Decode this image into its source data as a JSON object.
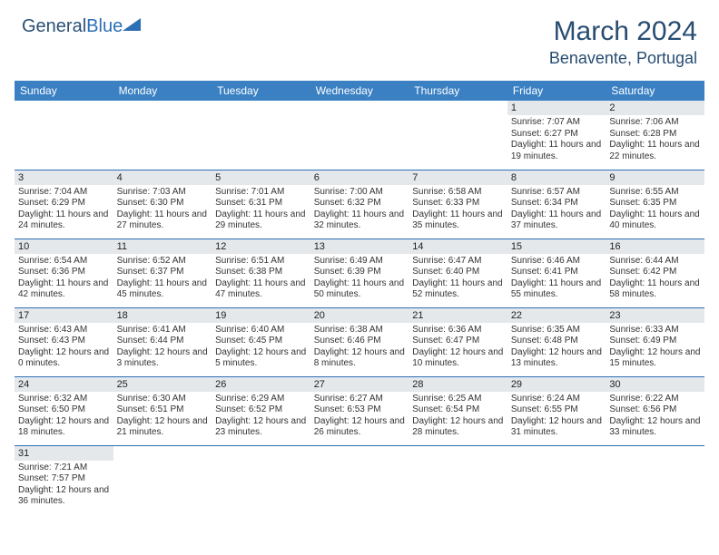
{
  "logo": {
    "text1": "General",
    "text2": "Blue"
  },
  "title": "March 2024",
  "location": "Benavente, Portugal",
  "weekdays": [
    "Sunday",
    "Monday",
    "Tuesday",
    "Wednesday",
    "Thursday",
    "Friday",
    "Saturday"
  ],
  "colors": {
    "header_bg": "#3a80c3",
    "header_text": "#ffffff",
    "title_text": "#284d72",
    "daynum_bg": "#e5e8eb",
    "border": "#2d6fb5"
  },
  "grid": [
    [
      null,
      null,
      null,
      null,
      null,
      {
        "n": "1",
        "sunrise": "Sunrise: 7:07 AM",
        "sunset": "Sunset: 6:27 PM",
        "daylight": "Daylight: 11 hours and 19 minutes."
      },
      {
        "n": "2",
        "sunrise": "Sunrise: 7:06 AM",
        "sunset": "Sunset: 6:28 PM",
        "daylight": "Daylight: 11 hours and 22 minutes."
      }
    ],
    [
      {
        "n": "3",
        "sunrise": "Sunrise: 7:04 AM",
        "sunset": "Sunset: 6:29 PM",
        "daylight": "Daylight: 11 hours and 24 minutes."
      },
      {
        "n": "4",
        "sunrise": "Sunrise: 7:03 AM",
        "sunset": "Sunset: 6:30 PM",
        "daylight": "Daylight: 11 hours and 27 minutes."
      },
      {
        "n": "5",
        "sunrise": "Sunrise: 7:01 AM",
        "sunset": "Sunset: 6:31 PM",
        "daylight": "Daylight: 11 hours and 29 minutes."
      },
      {
        "n": "6",
        "sunrise": "Sunrise: 7:00 AM",
        "sunset": "Sunset: 6:32 PM",
        "daylight": "Daylight: 11 hours and 32 minutes."
      },
      {
        "n": "7",
        "sunrise": "Sunrise: 6:58 AM",
        "sunset": "Sunset: 6:33 PM",
        "daylight": "Daylight: 11 hours and 35 minutes."
      },
      {
        "n": "8",
        "sunrise": "Sunrise: 6:57 AM",
        "sunset": "Sunset: 6:34 PM",
        "daylight": "Daylight: 11 hours and 37 minutes."
      },
      {
        "n": "9",
        "sunrise": "Sunrise: 6:55 AM",
        "sunset": "Sunset: 6:35 PM",
        "daylight": "Daylight: 11 hours and 40 minutes."
      }
    ],
    [
      {
        "n": "10",
        "sunrise": "Sunrise: 6:54 AM",
        "sunset": "Sunset: 6:36 PM",
        "daylight": "Daylight: 11 hours and 42 minutes."
      },
      {
        "n": "11",
        "sunrise": "Sunrise: 6:52 AM",
        "sunset": "Sunset: 6:37 PM",
        "daylight": "Daylight: 11 hours and 45 minutes."
      },
      {
        "n": "12",
        "sunrise": "Sunrise: 6:51 AM",
        "sunset": "Sunset: 6:38 PM",
        "daylight": "Daylight: 11 hours and 47 minutes."
      },
      {
        "n": "13",
        "sunrise": "Sunrise: 6:49 AM",
        "sunset": "Sunset: 6:39 PM",
        "daylight": "Daylight: 11 hours and 50 minutes."
      },
      {
        "n": "14",
        "sunrise": "Sunrise: 6:47 AM",
        "sunset": "Sunset: 6:40 PM",
        "daylight": "Daylight: 11 hours and 52 minutes."
      },
      {
        "n": "15",
        "sunrise": "Sunrise: 6:46 AM",
        "sunset": "Sunset: 6:41 PM",
        "daylight": "Daylight: 11 hours and 55 minutes."
      },
      {
        "n": "16",
        "sunrise": "Sunrise: 6:44 AM",
        "sunset": "Sunset: 6:42 PM",
        "daylight": "Daylight: 11 hours and 58 minutes."
      }
    ],
    [
      {
        "n": "17",
        "sunrise": "Sunrise: 6:43 AM",
        "sunset": "Sunset: 6:43 PM",
        "daylight": "Daylight: 12 hours and 0 minutes."
      },
      {
        "n": "18",
        "sunrise": "Sunrise: 6:41 AM",
        "sunset": "Sunset: 6:44 PM",
        "daylight": "Daylight: 12 hours and 3 minutes."
      },
      {
        "n": "19",
        "sunrise": "Sunrise: 6:40 AM",
        "sunset": "Sunset: 6:45 PM",
        "daylight": "Daylight: 12 hours and 5 minutes."
      },
      {
        "n": "20",
        "sunrise": "Sunrise: 6:38 AM",
        "sunset": "Sunset: 6:46 PM",
        "daylight": "Daylight: 12 hours and 8 minutes."
      },
      {
        "n": "21",
        "sunrise": "Sunrise: 6:36 AM",
        "sunset": "Sunset: 6:47 PM",
        "daylight": "Daylight: 12 hours and 10 minutes."
      },
      {
        "n": "22",
        "sunrise": "Sunrise: 6:35 AM",
        "sunset": "Sunset: 6:48 PM",
        "daylight": "Daylight: 12 hours and 13 minutes."
      },
      {
        "n": "23",
        "sunrise": "Sunrise: 6:33 AM",
        "sunset": "Sunset: 6:49 PM",
        "daylight": "Daylight: 12 hours and 15 minutes."
      }
    ],
    [
      {
        "n": "24",
        "sunrise": "Sunrise: 6:32 AM",
        "sunset": "Sunset: 6:50 PM",
        "daylight": "Daylight: 12 hours and 18 minutes."
      },
      {
        "n": "25",
        "sunrise": "Sunrise: 6:30 AM",
        "sunset": "Sunset: 6:51 PM",
        "daylight": "Daylight: 12 hours and 21 minutes."
      },
      {
        "n": "26",
        "sunrise": "Sunrise: 6:29 AM",
        "sunset": "Sunset: 6:52 PM",
        "daylight": "Daylight: 12 hours and 23 minutes."
      },
      {
        "n": "27",
        "sunrise": "Sunrise: 6:27 AM",
        "sunset": "Sunset: 6:53 PM",
        "daylight": "Daylight: 12 hours and 26 minutes."
      },
      {
        "n": "28",
        "sunrise": "Sunrise: 6:25 AM",
        "sunset": "Sunset: 6:54 PM",
        "daylight": "Daylight: 12 hours and 28 minutes."
      },
      {
        "n": "29",
        "sunrise": "Sunrise: 6:24 AM",
        "sunset": "Sunset: 6:55 PM",
        "daylight": "Daylight: 12 hours and 31 minutes."
      },
      {
        "n": "30",
        "sunrise": "Sunrise: 6:22 AM",
        "sunset": "Sunset: 6:56 PM",
        "daylight": "Daylight: 12 hours and 33 minutes."
      }
    ],
    [
      {
        "n": "31",
        "sunrise": "Sunrise: 7:21 AM",
        "sunset": "Sunset: 7:57 PM",
        "daylight": "Daylight: 12 hours and 36 minutes."
      },
      null,
      null,
      null,
      null,
      null,
      null
    ]
  ]
}
